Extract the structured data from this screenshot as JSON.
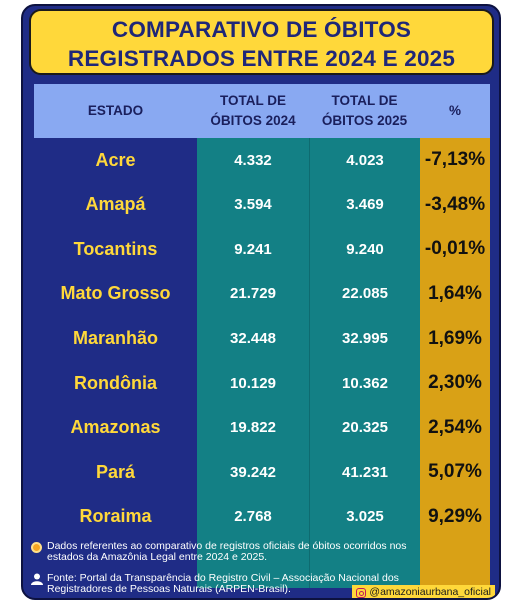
{
  "title": {
    "line1": "COMPARATIVO DE ÓBITOS",
    "line2": "REGISTRADOS ENTRE 2024 E 2025"
  },
  "table": {
    "headers": {
      "estado": "ESTADO",
      "total2024_l1": "TOTAL DE",
      "total2024_l2": "ÓBITOS 2024",
      "total2025_l1": "TOTAL DE",
      "total2025_l2": "ÓBITOS 2025",
      "pct": "%"
    },
    "rows": [
      {
        "estado": "Acre",
        "y2024": "4.332",
        "y2025": "4.023",
        "pct": "-7,13%"
      },
      {
        "estado": "Amapá",
        "y2024": "3.594",
        "y2025": "3.469",
        "pct": "-3,48%"
      },
      {
        "estado": "Tocantins",
        "y2024": "9.241",
        "y2025": "9.240",
        "pct": "-0,01%"
      },
      {
        "estado": "Mato Grosso",
        "y2024": "21.729",
        "y2025": "22.085",
        "pct": "1,64%"
      },
      {
        "estado": "Maranhão",
        "y2024": "32.448",
        "y2025": "32.995",
        "pct": "1,69%"
      },
      {
        "estado": "Rondônia",
        "y2024": "10.129",
        "y2025": "10.362",
        "pct": "2,30%"
      },
      {
        "estado": "Amazonas",
        "y2024": "19.822",
        "y2025": "20.325",
        "pct": "2,54%"
      },
      {
        "estado": "Pará",
        "y2024": "39.242",
        "y2025": "41.231",
        "pct": "5,07%"
      },
      {
        "estado": "Roraima",
        "y2024": "2.768",
        "y2025": "3.025",
        "pct": "9,29%"
      }
    ]
  },
  "footer": {
    "note_line1": "Dados referentes ao comparativo de registros oficiais de óbitos ocorridos nos",
    "note_line2": "estados da Amazônia Legal entre 2024 e 2025.",
    "source_line1": "Fonte: Portal da Transparência do Registro Civil – Associação Nacional dos",
    "source_line2": "Registradores de Pessoas Naturais (ARPEN-Brasil).",
    "handle": "@amazoniaurbana_oficial"
  },
  "colors": {
    "background": "#1f2c86",
    "title_bg": "#ffd83a",
    "header_bg": "#89a9f2",
    "teal": "#138085",
    "gold": "#d9a116"
  }
}
